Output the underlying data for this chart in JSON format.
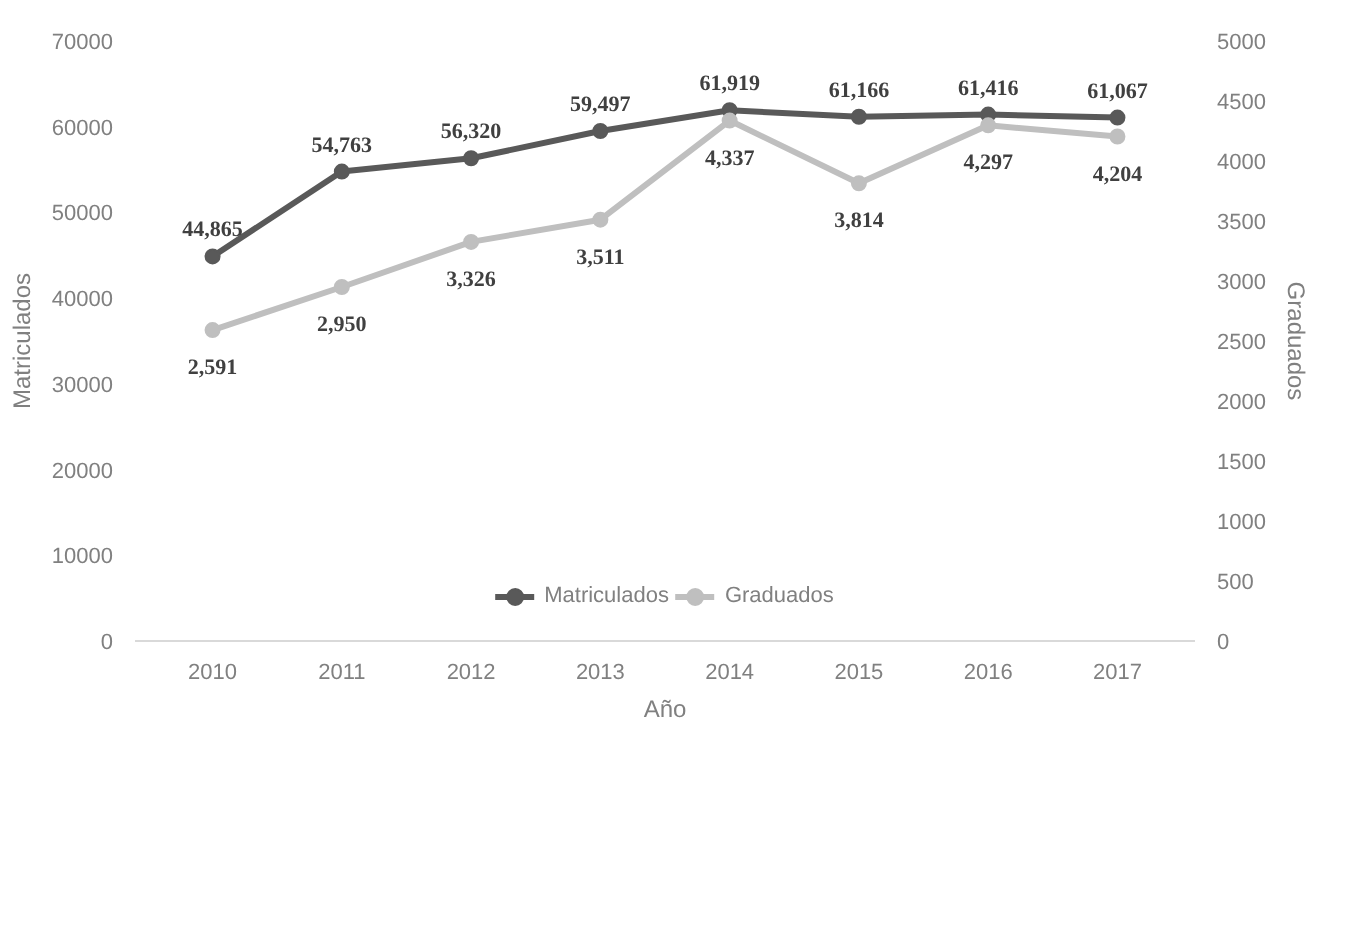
{
  "chart_data": {
    "type": "line",
    "xlabel": "Año",
    "ylabel": "Matriculados",
    "y2label": "Graduados",
    "categories": [
      "2010",
      "2011",
      "2012",
      "2013",
      "2014",
      "2015",
      "2016",
      "2017"
    ],
    "series": [
      {
        "name": "Matriculados",
        "color": "#595959",
        "values": [
          44865,
          54763,
          56320,
          59497,
          61919,
          61166,
          61416,
          61067
        ],
        "value_labels": [
          "44,865",
          "54,763",
          "56,320",
          "59,497",
          "61,919",
          "61,166",
          "61,416",
          "61,067"
        ]
      },
      {
        "name": "Graduados",
        "color": "#bfbfbf",
        "axis": "y2",
        "values": [
          2591,
          2950,
          3326,
          3511,
          4337,
          3814,
          4297,
          4204
        ],
        "value_labels": [
          "2,591",
          "2,950",
          "3,326",
          "3,511",
          "4,337",
          "3,814",
          "4,297",
          "4,204"
        ]
      }
    ],
    "ylim": [
      0,
      70000
    ],
    "yticks": [
      0,
      10000,
      20000,
      30000,
      40000,
      50000,
      60000,
      70000
    ],
    "y2lim": [
      0,
      5000
    ],
    "y2ticks": [
      0,
      500,
      1000,
      1500,
      2000,
      2500,
      3000,
      3500,
      4000,
      4500,
      5000
    ],
    "grid": false,
    "legend": "bottom",
    "marker": "circle",
    "line_style": "solid"
  }
}
